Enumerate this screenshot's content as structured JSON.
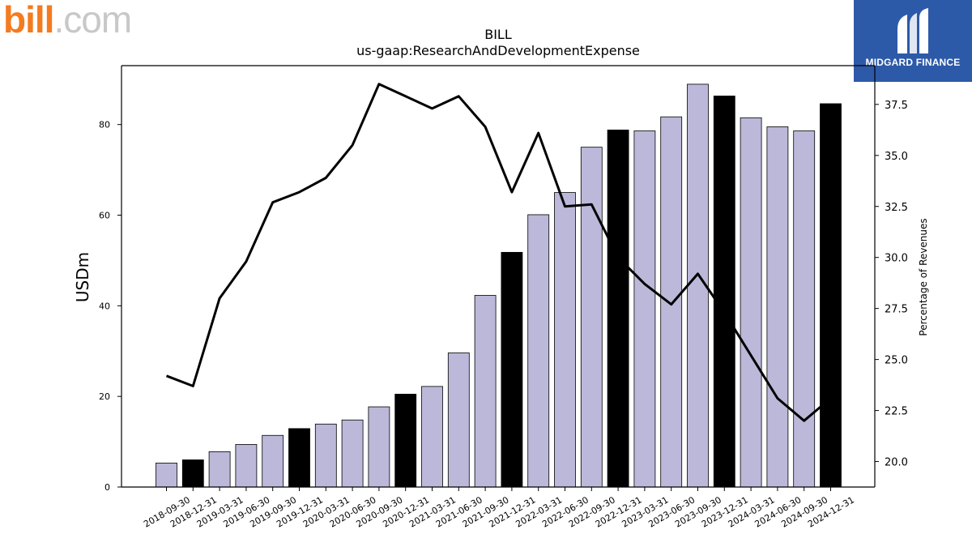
{
  "brand": {
    "left_logo_text_primary": "bill",
    "left_logo_text_secondary": ".com",
    "right_logo_text": "MIDGARD FINANCE"
  },
  "chart_data": {
    "type": "bar",
    "title": "BILL",
    "subtitle": "us-gaap:ResearchAndDevelopmentExpense",
    "ylabel": "USDm",
    "y2label": "Percentage of Revenues",
    "ylim": [
      0,
      93
    ],
    "y2lim": [
      18.75,
      39.4
    ],
    "yticks": [
      0,
      20,
      40,
      60,
      80
    ],
    "y2ticks": [
      20.0,
      22.5,
      25.0,
      27.5,
      30.0,
      32.5,
      35.0,
      37.5
    ],
    "categories": [
      "2018-09-30",
      "2018-12-31",
      "2019-03-31",
      "2019-06-30",
      "2019-09-30",
      "2019-12-31",
      "2020-03-31",
      "2020-06-30",
      "2020-09-30",
      "2020-12-31",
      "2021-03-31",
      "2021-06-30",
      "2021-09-30",
      "2021-12-31",
      "2022-03-31",
      "2022-06-30",
      "2022-09-30",
      "2022-12-31",
      "2023-03-31",
      "2023-06-30",
      "2023-09-30",
      "2023-12-31",
      "2024-03-31",
      "2024-06-30",
      "2024-09-30",
      "2024-12-31"
    ],
    "series": [
      {
        "type": "bar",
        "axis": "left",
        "values": [
          5.3,
          6.0,
          7.8,
          9.4,
          11.4,
          12.9,
          13.9,
          14.8,
          17.7,
          20.5,
          22.2,
          29.6,
          42.3,
          51.8,
          60.1,
          65.0,
          75.0,
          78.8,
          78.6,
          81.7,
          88.9,
          86.3,
          81.5,
          79.5,
          78.6,
          84.6
        ],
        "highlight_quarter_end": "12-31",
        "colors": {
          "normal": "#bcb8d9",
          "highlight": "#000000"
        }
      },
      {
        "type": "line",
        "axis": "right",
        "values": [
          24.2,
          23.7,
          28.0,
          29.8,
          32.7,
          33.2,
          33.9,
          35.5,
          38.5,
          37.9,
          37.3,
          37.9,
          36.4,
          33.2,
          36.1,
          32.5,
          32.6,
          30.0,
          28.7,
          27.7,
          29.2,
          27.3,
          25.2,
          23.1,
          22.0,
          23.1
        ],
        "color": "#000000"
      }
    ],
    "grid": false,
    "legend": "none"
  }
}
